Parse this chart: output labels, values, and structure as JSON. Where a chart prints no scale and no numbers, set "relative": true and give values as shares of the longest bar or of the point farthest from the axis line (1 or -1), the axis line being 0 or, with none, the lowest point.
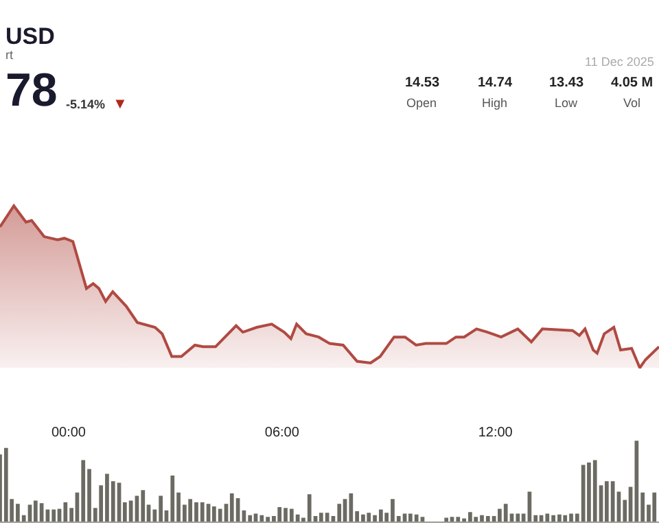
{
  "chart_data": [
    {
      "type": "area",
      "title": "USD",
      "subtitle": "rt",
      "relative": true,
      "color": "#b04a42",
      "annotations": [
        "78",
        "-5.14%",
        "▼",
        "14.53",
        "Open",
        "14.74",
        "High",
        "13.43",
        "Low",
        "4.05 M",
        "Vol",
        "11 Dec 2025"
      ],
      "x": [
        -1.93,
        -1.54,
        -1.2,
        -1.04,
        -0.69,
        -0.31,
        -0.12,
        0.12,
        0.5,
        0.69,
        0.85,
        1.04,
        1.24,
        1.62,
        1.93,
        2.43,
        2.63,
        2.9,
        3.17,
        3.55,
        3.78,
        4.13,
        4.71,
        4.9,
        5.29,
        5.71,
        6.06,
        6.25,
        6.41,
        6.68,
        7.03,
        7.34,
        7.72,
        8.11,
        8.49,
        8.76,
        9.15,
        9.46,
        9.77,
        10.04,
        10.62,
        10.89,
        11.12,
        11.47,
        11.78,
        12.16,
        12.63,
        13.01,
        13.32,
        14.17,
        14.36,
        14.52,
        14.75,
        14.86,
        15.06,
        15.33,
        15.52,
        15.83,
        16.06,
        16.22,
        16.6
      ],
      "values": [
        0.87,
        1.0,
        0.9,
        0.91,
        0.81,
        0.79,
        0.8,
        0.78,
        0.49,
        0.52,
        0.49,
        0.41,
        0.47,
        0.38,
        0.28,
        0.25,
        0.21,
        0.07,
        0.07,
        0.14,
        0.13,
        0.13,
        0.26,
        0.22,
        0.25,
        0.27,
        0.22,
        0.18,
        0.27,
        0.21,
        0.19,
        0.15,
        0.14,
        0.04,
        0.03,
        0.07,
        0.19,
        0.19,
        0.14,
        0.15,
        0.15,
        0.19,
        0.19,
        0.24,
        0.22,
        0.19,
        0.24,
        0.16,
        0.24,
        0.23,
        0.2,
        0.24,
        0.11,
        0.09,
        0.21,
        0.25,
        0.11,
        0.12,
        0.0,
        0.05,
        0.13
      ],
      "xlim": [
        -1.93,
        16.6
      ],
      "xticks": [
        {
          "value": 0,
          "label": "00:00"
        },
        {
          "value": 6,
          "label": "06:00"
        },
        {
          "value": 12,
          "label": "12:00"
        }
      ]
    },
    {
      "type": "bar",
      "relative": true,
      "color": "#6b6b63",
      "xlim": [
        -1.93,
        16.6
      ],
      "x": [
        -1.93,
        -1.76,
        -1.6,
        -1.43,
        -1.26,
        -1.09,
        -0.93,
        -0.76,
        -0.59,
        -0.42,
        -0.26,
        -0.09,
        0.08,
        0.24,
        0.41,
        0.58,
        0.75,
        0.91,
        1.08,
        1.25,
        1.42,
        1.58,
        1.75,
        1.92,
        2.09,
        2.25,
        2.42,
        2.59,
        2.75,
        2.92,
        3.09,
        3.26,
        3.42,
        3.59,
        3.76,
        3.93,
        4.09,
        4.26,
        4.43,
        4.59,
        4.76,
        4.93,
        5.1,
        5.26,
        5.43,
        5.6,
        5.77,
        5.93,
        6.1,
        6.27,
        6.44,
        6.6,
        6.77,
        6.94,
        7.1,
        7.27,
        7.44,
        7.61,
        7.77,
        7.94,
        8.11,
        8.28,
        8.44,
        8.61,
        8.78,
        8.94,
        9.11,
        9.28,
        9.45,
        9.61,
        9.78,
        9.95,
        10.12,
        10.28,
        10.45,
        10.62,
        10.78,
        10.95,
        11.12,
        11.29,
        11.45,
        11.62,
        11.79,
        11.96,
        12.12,
        12.29,
        12.46,
        12.63,
        12.79,
        12.96,
        13.13,
        13.29,
        13.46,
        13.63,
        13.8,
        13.96,
        14.13,
        14.3,
        14.47,
        14.63,
        14.8,
        14.97,
        15.13,
        15.3,
        15.47,
        15.64,
        15.8,
        15.97,
        16.14,
        16.31,
        16.47
      ],
      "values": [
        0.83,
        0.91,
        0.28,
        0.22,
        0.08,
        0.21,
        0.26,
        0.23,
        0.15,
        0.15,
        0.16,
        0.24,
        0.17,
        0.36,
        0.76,
        0.65,
        0.17,
        0.45,
        0.59,
        0.5,
        0.48,
        0.24,
        0.26,
        0.32,
        0.39,
        0.21,
        0.15,
        0.32,
        0.14,
        0.57,
        0.36,
        0.21,
        0.28,
        0.24,
        0.24,
        0.22,
        0.19,
        0.16,
        0.22,
        0.35,
        0.29,
        0.14,
        0.08,
        0.1,
        0.08,
        0.06,
        0.07,
        0.18,
        0.17,
        0.16,
        0.09,
        0.05,
        0.34,
        0.07,
        0.11,
        0.11,
        0.07,
        0.22,
        0.28,
        0.35,
        0.13,
        0.09,
        0.11,
        0.08,
        0.15,
        0.11,
        0.28,
        0.07,
        0.1,
        0.1,
        0.09,
        0.06,
        null,
        null,
        null,
        0.05,
        0.06,
        0.06,
        0.04,
        0.12,
        0.06,
        0.08,
        0.07,
        0.07,
        0.16,
        0.22,
        0.1,
        0.1,
        0.1,
        0.37,
        0.08,
        0.08,
        0.1,
        0.08,
        0.09,
        0.08,
        0.1,
        0.1,
        0.7,
        0.73,
        0.76,
        0.45,
        0.5,
        0.5,
        0.37,
        0.27,
        0.43,
        1.0,
        0.36,
        0.21,
        0.36
      ]
    }
  ]
}
